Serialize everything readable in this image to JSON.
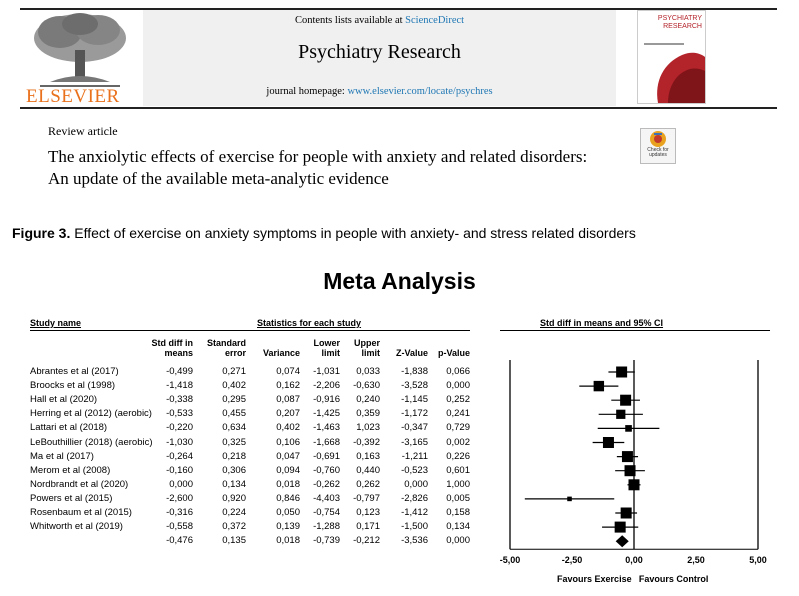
{
  "header": {
    "contents_prefix": "Contents lists available at ",
    "contents_link": "ScienceDirect",
    "journal_title": "Psychiatry Research",
    "homepage_prefix": "journal homepage: ",
    "homepage_link": "www.elsevier.com/locate/psychres",
    "publisher": "ELSEVIER",
    "cover_title": "PSYCHIATRY RESEARCH"
  },
  "article": {
    "type": "Review article",
    "title": "The anxiolytic effects of exercise for people with anxiety and related disorders: An update of the available meta-analytic evidence",
    "check_updates": "Check for updates"
  },
  "figure": {
    "label": "Figure 3.",
    "caption": " Effect of exercise on anxiety symptoms in people with anxiety- and stress related disorders"
  },
  "chart_data": {
    "type": "forest",
    "title": "Meta Analysis",
    "table_headers": {
      "study_name": "Study name",
      "stats_group": "Statistics for each study",
      "std_diff": "Std diff in means",
      "standard_error": "Standard error",
      "variance": "Variance",
      "lower_limit": "Lower limit",
      "upper_limit": "Upper limit",
      "z_value": "Z-Value",
      "p_value": "p-Value",
      "plot_header": "Std diff in means and 95% CI"
    },
    "studies": [
      {
        "name": "Abrantes et al (2017)",
        "sdm": "-0,499",
        "se": "0,271",
        "var": "0,074",
        "lower": "-1,031",
        "upper": "0,033",
        "z": "-1,838",
        "p": "0,066",
        "est": -0.499,
        "lo": -1.031,
        "hi": 0.033
      },
      {
        "name": "Broocks et al (1998)",
        "sdm": "-1,418",
        "se": "0,402",
        "var": "0,162",
        "lower": "-2,206",
        "upper": "-0,630",
        "z": "-3,528",
        "p": "0,000",
        "est": -1.418,
        "lo": -2.206,
        "hi": -0.63
      },
      {
        "name": "Hall et al (2020)",
        "sdm": "-0,338",
        "se": "0,295",
        "var": "0,087",
        "lower": "-0,916",
        "upper": "0,240",
        "z": "-1,145",
        "p": "0,252",
        "est": -0.338,
        "lo": -0.916,
        "hi": 0.24
      },
      {
        "name": "Herring et al (2012) (aerobic)",
        "sdm": "-0,533",
        "se": "0,455",
        "var": "0,207",
        "lower": "-1,425",
        "upper": "0,359",
        "z": "-1,172",
        "p": "0,241",
        "est": -0.533,
        "lo": -1.425,
        "hi": 0.359
      },
      {
        "name": "Lattari et al (2018)",
        "sdm": "-0,220",
        "se": "0,634",
        "var": "0,402",
        "lower": "-1,463",
        "upper": "1,023",
        "z": "-0,347",
        "p": "0,729",
        "est": -0.22,
        "lo": -1.463,
        "hi": 1.023
      },
      {
        "name": "LeBouthillier (2018) (aerobic)",
        "sdm": "-1,030",
        "se": "0,325",
        "var": "0,106",
        "lower": "-1,668",
        "upper": "-0,392",
        "z": "-3,165",
        "p": "0,002",
        "est": -1.03,
        "lo": -1.668,
        "hi": -0.392
      },
      {
        "name": "Ma et al (2017)",
        "sdm": "-0,264",
        "se": "0,218",
        "var": "0,047",
        "lower": "-0,691",
        "upper": "0,163",
        "z": "-1,211",
        "p": "0,226",
        "est": -0.264,
        "lo": -0.691,
        "hi": 0.163
      },
      {
        "name": "Merom et al (2008)",
        "sdm": "-0,160",
        "se": "0,306",
        "var": "0,094",
        "lower": "-0,760",
        "upper": "0,440",
        "z": "-0,523",
        "p": "0,601",
        "est": -0.16,
        "lo": -0.76,
        "hi": 0.44
      },
      {
        "name": "Nordbrandt et al (2020)",
        "sdm": "0,000",
        "se": "0,134",
        "var": "0,018",
        "lower": "-0,262",
        "upper": "0,262",
        "z": "0,000",
        "p": "1,000",
        "est": 0.0,
        "lo": -0.262,
        "hi": 0.262
      },
      {
        "name": "Powers et al (2015)",
        "sdm": "-2,600",
        "se": "0,920",
        "var": "0,846",
        "lower": "-4,403",
        "upper": "-0,797",
        "z": "-2,826",
        "p": "0,005",
        "est": -2.6,
        "lo": -4.403,
        "hi": -0.797
      },
      {
        "name": "Rosenbaum et al (2015)",
        "sdm": "-0,316",
        "se": "0,224",
        "var": "0,050",
        "lower": "-0,754",
        "upper": "0,123",
        "z": "-1,412",
        "p": "0,158",
        "est": -0.316,
        "lo": -0.754,
        "hi": 0.123
      },
      {
        "name": "Whitworth et al (2019)",
        "sdm": "-0,558",
        "se": "0,372",
        "var": "0,139",
        "lower": "-1,288",
        "upper": "0,171",
        "z": "-1,500",
        "p": "0,134",
        "est": -0.558,
        "lo": -1.288,
        "hi": 0.171
      }
    ],
    "pooled": {
      "sdm": "-0,476",
      "se": "0,135",
      "var": "0,018",
      "lower": "-0,739",
      "upper": "-0,212",
      "z": "-3,536",
      "p": "0,000",
      "est": -0.476,
      "lo": -0.739,
      "hi": -0.212
    },
    "x_ticks": [
      "-5,00",
      "-2,50",
      "0,00",
      "2,50",
      "5,00"
    ],
    "x_tick_values": [
      -5,
      -2.5,
      0,
      2.5,
      5
    ],
    "xlim": [
      -5,
      5
    ],
    "favours_left": "Favours Exercise",
    "favours_right": "Favours Control"
  }
}
